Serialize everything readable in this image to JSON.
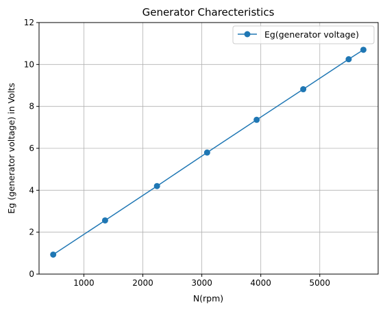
{
  "chart_data": {
    "type": "line",
    "title": "Generator Charecteristics",
    "xlabel": "N(rpm)",
    "ylabel": "Eg (generator voltage) in Volts",
    "xlim": [
      240,
      5990
    ],
    "ylim": [
      0,
      12
    ],
    "xticks": [
      1000,
      2000,
      3000,
      4000,
      5000
    ],
    "yticks": [
      0,
      2,
      4,
      6,
      8,
      10,
      12
    ],
    "grid": true,
    "legend_position": "top-right",
    "series": [
      {
        "name": "Eg(generator voltage)",
        "color": "#1f77b4",
        "marker": "circle",
        "x": [
          480,
          1360,
          2240,
          3090,
          3930,
          4720,
          5490,
          5740
        ],
        "y": [
          0.93,
          2.56,
          4.2,
          5.8,
          7.36,
          8.82,
          10.25,
          10.7
        ]
      }
    ]
  }
}
